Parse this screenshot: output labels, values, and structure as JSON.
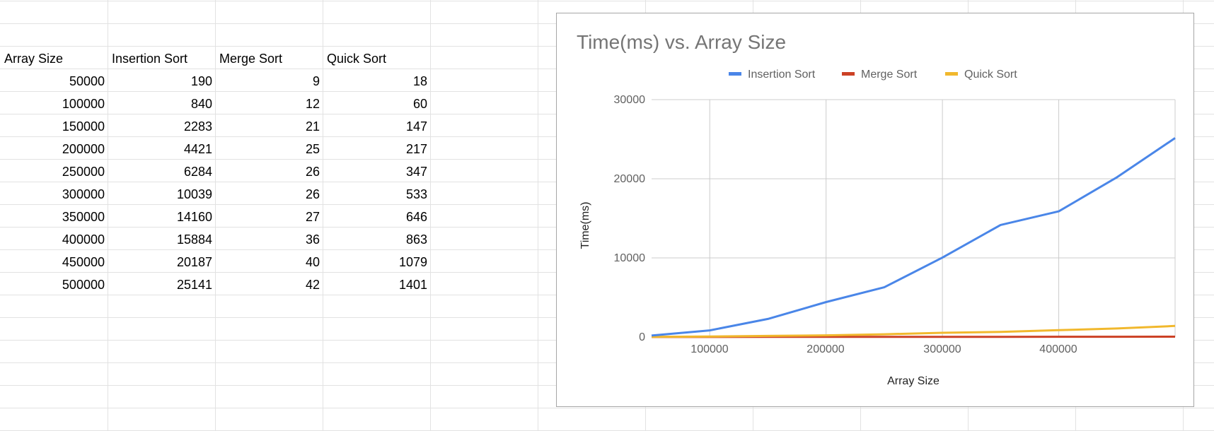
{
  "spreadsheet": {
    "headers": [
      "Array Size",
      "Insertion Sort",
      "Merge Sort",
      "Quick Sort"
    ],
    "rows": [
      [
        "50000",
        "190",
        "9",
        "18"
      ],
      [
        "100000",
        "840",
        "12",
        "60"
      ],
      [
        "150000",
        "2283",
        "21",
        "147"
      ],
      [
        "200000",
        "4421",
        "25",
        "217"
      ],
      [
        "250000",
        "6284",
        "26",
        "347"
      ],
      [
        "300000",
        "10039",
        "26",
        "533"
      ],
      [
        "350000",
        "14160",
        "27",
        "646"
      ],
      [
        "400000",
        "15884",
        "36",
        "863"
      ],
      [
        "450000",
        "20187",
        "40",
        "1079"
      ],
      [
        "500000",
        "25141",
        "42",
        "1401"
      ]
    ]
  },
  "chart_data": {
    "type": "line",
    "title": "Time(ms) vs. Array Size",
    "xlabel": "Array Size",
    "ylabel": "Time(ms)",
    "x": [
      50000,
      100000,
      150000,
      200000,
      250000,
      300000,
      350000,
      400000,
      450000,
      500000
    ],
    "series": [
      {
        "name": "Insertion Sort",
        "color": "#4a86e8",
        "values": [
          190,
          840,
          2283,
          4421,
          6284,
          10039,
          14160,
          15884,
          20187,
          25141
        ]
      },
      {
        "name": "Merge Sort",
        "color": "#cc4125",
        "values": [
          9,
          12,
          21,
          25,
          26,
          26,
          27,
          36,
          40,
          42
        ]
      },
      {
        "name": "Quick Sort",
        "color": "#f1b82d",
        "values": [
          18,
          60,
          147,
          217,
          347,
          533,
          646,
          863,
          1079,
          1401
        ]
      }
    ],
    "xlim": [
      50000,
      500000
    ],
    "ylim": [
      0,
      30000
    ],
    "x_ticks": [
      100000,
      200000,
      300000,
      400000
    ],
    "x_tick_labels": [
      "100000",
      "200000",
      "300000",
      "400000"
    ],
    "y_ticks": [
      0,
      10000,
      20000,
      30000
    ],
    "y_tick_labels": [
      "0",
      "10000",
      "20000",
      "30000"
    ],
    "grid": true,
    "legend": "top"
  }
}
